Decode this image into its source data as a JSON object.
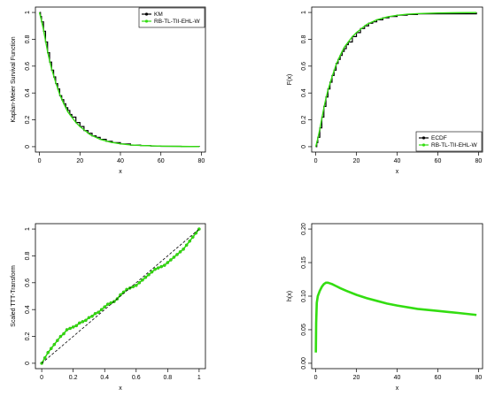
{
  "colors": {
    "observed": "#000000",
    "fitted": "#33dd11",
    "reference": "#000000"
  },
  "chart_data": [
    {
      "type": "line",
      "panel": "top-left",
      "xlabel": "x",
      "ylabel": "Kaplan-Meier Survival Function",
      "xlim": [
        -2,
        82
      ],
      "ylim": [
        -0.04,
        1.04
      ],
      "xticks": [
        0,
        20,
        40,
        60,
        80
      ],
      "yticks": [
        0.0,
        0.2,
        0.4,
        0.6,
        0.8,
        1.0
      ],
      "legend_position": "top-right",
      "series": [
        {
          "name": "KM",
          "color": "#000000",
          "style": "step",
          "x": [
            0,
            0.5,
            1,
            2,
            3,
            4,
            5,
            6,
            7,
            8,
            9,
            10,
            11,
            12,
            13,
            14,
            15,
            16,
            18,
            20,
            22,
            24,
            26,
            28,
            30,
            33,
            36,
            40,
            45,
            50,
            55,
            60,
            70,
            79
          ],
          "y": [
            1.0,
            0.97,
            0.93,
            0.86,
            0.78,
            0.7,
            0.63,
            0.57,
            0.52,
            0.47,
            0.43,
            0.38,
            0.35,
            0.32,
            0.29,
            0.27,
            0.24,
            0.22,
            0.18,
            0.15,
            0.12,
            0.1,
            0.08,
            0.07,
            0.055,
            0.04,
            0.03,
            0.02,
            0.012,
            0.008,
            0.005,
            0.003,
            0.001,
            0.0
          ]
        },
        {
          "name": "RB-TL-TII-EHL-W",
          "color": "#33dd11",
          "style": "line",
          "x": [
            0,
            1,
            2,
            3,
            4,
            5,
            6,
            8,
            10,
            12,
            14,
            16,
            18,
            20,
            25,
            30,
            35,
            40,
            45,
            50,
            60,
            70,
            79
          ],
          "y": [
            1.0,
            0.94,
            0.87,
            0.79,
            0.71,
            0.64,
            0.58,
            0.48,
            0.39,
            0.32,
            0.26,
            0.22,
            0.18,
            0.15,
            0.09,
            0.055,
            0.034,
            0.021,
            0.013,
            0.009,
            0.004,
            0.002,
            0.001
          ]
        }
      ]
    },
    {
      "type": "line",
      "panel": "top-right",
      "xlabel": "x",
      "ylabel": "F(x)",
      "xlim": [
        -2,
        82
      ],
      "ylim": [
        -0.04,
        1.04
      ],
      "xticks": [
        0,
        20,
        40,
        60,
        80
      ],
      "yticks": [
        0.0,
        0.2,
        0.4,
        0.6,
        0.8,
        1.0
      ],
      "legend_position": "bottom-right",
      "series": [
        {
          "name": "ECDF",
          "color": "#000000",
          "style": "step",
          "x": [
            0,
            0.5,
            1,
            2,
            3,
            4,
            5,
            6,
            7,
            8,
            9,
            10,
            11,
            12,
            13,
            14,
            15,
            16,
            18,
            20,
            22,
            24,
            26,
            28,
            30,
            33,
            36,
            40,
            45,
            50,
            79
          ],
          "y": [
            0.0,
            0.03,
            0.07,
            0.14,
            0.22,
            0.3,
            0.37,
            0.43,
            0.48,
            0.53,
            0.57,
            0.62,
            0.65,
            0.68,
            0.71,
            0.73,
            0.76,
            0.78,
            0.82,
            0.85,
            0.88,
            0.9,
            0.92,
            0.93,
            0.945,
            0.96,
            0.97,
            0.98,
            0.985,
            0.99,
            1.0
          ]
        },
        {
          "name": "RB-TL-TII-EHL-W",
          "color": "#33dd11",
          "style": "line",
          "x": [
            0,
            1,
            2,
            3,
            4,
            5,
            6,
            8,
            10,
            12,
            14,
            16,
            18,
            20,
            25,
            30,
            35,
            40,
            45,
            50,
            60,
            70,
            79
          ],
          "y": [
            0.0,
            0.06,
            0.13,
            0.21,
            0.29,
            0.36,
            0.42,
            0.52,
            0.61,
            0.68,
            0.74,
            0.78,
            0.82,
            0.85,
            0.91,
            0.945,
            0.966,
            0.979,
            0.987,
            0.991,
            0.996,
            0.998,
            0.999
          ]
        }
      ]
    },
    {
      "type": "line",
      "panel": "bottom-left",
      "xlabel": "x",
      "ylabel": "Scaled TTT-Transform",
      "xlim": [
        -0.04,
        1.04
      ],
      "ylim": [
        -0.04,
        1.04
      ],
      "xticks": [
        0.0,
        0.2,
        0.4,
        0.6,
        0.8,
        1.0
      ],
      "yticks": [
        0.0,
        0.2,
        0.4,
        0.6,
        0.8,
        1.0
      ],
      "series": [
        {
          "color": "#33dd11",
          "style": "points-line",
          "x": [
            0.0,
            0.02,
            0.04,
            0.06,
            0.08,
            0.1,
            0.12,
            0.14,
            0.16,
            0.18,
            0.2,
            0.22,
            0.24,
            0.26,
            0.28,
            0.3,
            0.32,
            0.34,
            0.36,
            0.38,
            0.4,
            0.42,
            0.44,
            0.46,
            0.48,
            0.5,
            0.52,
            0.54,
            0.56,
            0.58,
            0.6,
            0.62,
            0.64,
            0.66,
            0.68,
            0.7,
            0.72,
            0.74,
            0.76,
            0.78,
            0.8,
            0.82,
            0.84,
            0.86,
            0.88,
            0.9,
            0.92,
            0.94,
            0.96,
            0.98,
            1.0
          ],
          "y": [
            0.0,
            0.04,
            0.08,
            0.11,
            0.14,
            0.17,
            0.2,
            0.22,
            0.25,
            0.26,
            0.27,
            0.28,
            0.3,
            0.31,
            0.32,
            0.34,
            0.35,
            0.37,
            0.38,
            0.4,
            0.42,
            0.44,
            0.45,
            0.46,
            0.48,
            0.51,
            0.53,
            0.55,
            0.56,
            0.57,
            0.58,
            0.6,
            0.62,
            0.64,
            0.66,
            0.68,
            0.7,
            0.71,
            0.72,
            0.73,
            0.75,
            0.77,
            0.79,
            0.81,
            0.83,
            0.85,
            0.88,
            0.91,
            0.94,
            0.97,
            1.0
          ]
        },
        {
          "color": "#000000",
          "style": "dashed",
          "x": [
            0.0,
            1.0
          ],
          "y": [
            0.0,
            1.0
          ]
        }
      ]
    },
    {
      "type": "line",
      "panel": "bottom-right",
      "xlabel": "x",
      "ylabel": "h(x)",
      "xlim": [
        -2,
        82
      ],
      "ylim": [
        -0.008,
        0.208
      ],
      "xticks": [
        0,
        20,
        40,
        60,
        80
      ],
      "yticks": [
        0.0,
        0.05,
        0.1,
        0.15,
        0.2
      ],
      "ytick_labels": [
        "0.00",
        "0.05",
        "0.10",
        "0.15",
        "0.20"
      ],
      "series": [
        {
          "color": "#33dd11",
          "style": "line",
          "x": [
            0.05,
            0.2,
            0.5,
            1,
            2,
            3,
            4,
            5,
            6,
            7,
            8,
            10,
            12,
            15,
            20,
            25,
            30,
            35,
            40,
            50,
            60,
            70,
            79
          ],
          "y": [
            0.016,
            0.06,
            0.09,
            0.1,
            0.108,
            0.114,
            0.118,
            0.12,
            0.12,
            0.119,
            0.118,
            0.115,
            0.112,
            0.108,
            0.102,
            0.097,
            0.093,
            0.089,
            0.086,
            0.081,
            0.078,
            0.075,
            0.072
          ]
        }
      ]
    }
  ]
}
